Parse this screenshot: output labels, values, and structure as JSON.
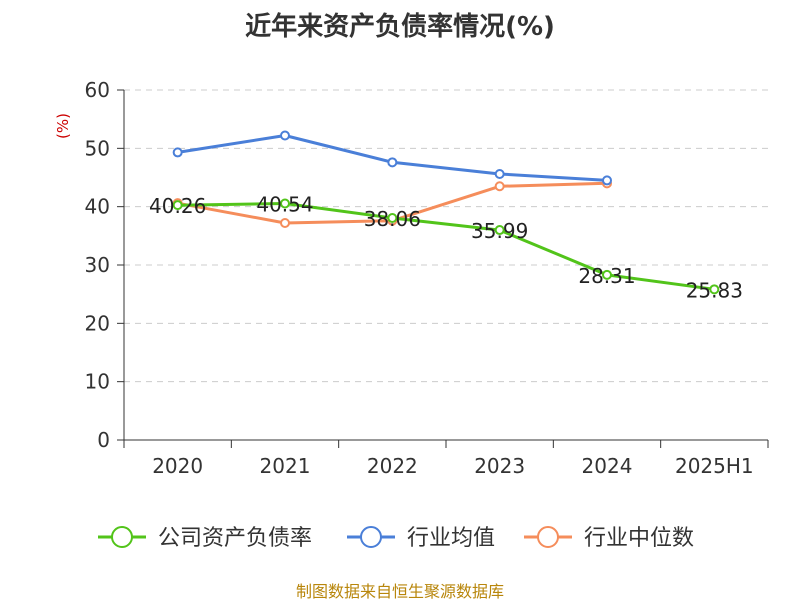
{
  "chart_data": {
    "type": "line",
    "title": "近年来资产负债率情况(%)",
    "ylabel": "(%)",
    "xlabel": "",
    "categories": [
      "2020",
      "2021",
      "2022",
      "2023",
      "2024",
      "2025H1"
    ],
    "ylim": [
      0,
      60
    ],
    "yticks": [
      0,
      10,
      20,
      30,
      40,
      50,
      60
    ],
    "grid": true,
    "legend_position": "bottom",
    "series": [
      {
        "name": "公司资产负债率",
        "color": "#52c41a",
        "values": [
          40.26,
          40.54,
          38.06,
          35.99,
          28.31,
          25.83
        ],
        "labels": [
          "40.26",
          "40.54",
          "38.06",
          "35.99",
          "28.31",
          "25.83"
        ]
      },
      {
        "name": "行业均值",
        "color": "#4a7fd8",
        "values": [
          49.3,
          52.2,
          47.6,
          45.6,
          44.5,
          null
        ]
      },
      {
        "name": "行业中位数",
        "color": "#f58d5b",
        "values": [
          40.6,
          37.2,
          37.6,
          43.5,
          44.0,
          null
        ]
      }
    ]
  },
  "source": "制图数据来自恒生聚源数据库"
}
